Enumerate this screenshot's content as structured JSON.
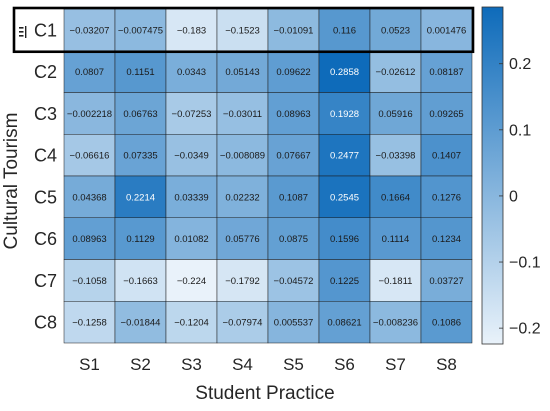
{
  "chart_data": {
    "type": "heatmap",
    "xlabel": "Student Practice",
    "ylabel": "Cultural Tourism",
    "x_categories": [
      "S1",
      "S2",
      "S3",
      "S4",
      "S5",
      "S6",
      "S7",
      "S8"
    ],
    "y_categories": [
      "C1",
      "C2",
      "C3",
      "C4",
      "C5",
      "C6",
      "C7",
      "C8"
    ],
    "cell_labels": [
      [
        "−0.03207",
        "−0.007475",
        "−0.183",
        "−0.1523",
        "−0.01091",
        "0.116",
        "0.0523",
        "0.001476"
      ],
      [
        "0.0807",
        "0.1151",
        "0.0343",
        "0.05143",
        "0.09622",
        "0.2858",
        "−0.02612",
        "0.08187"
      ],
      [
        "−0.002218",
        "0.06763",
        "−0.07253",
        "−0.03011",
        "0.08963",
        "0.1928",
        "0.05916",
        "0.09265"
      ],
      [
        "−0.06616",
        "0.07335",
        "−0.0349",
        "−0.008089",
        "0.07667",
        "0.2477",
        "−0.03398",
        "0.1407"
      ],
      [
        "0.04368",
        "0.2214",
        "0.03339",
        "0.02232",
        "0.1087",
        "0.2545",
        "0.1664",
        "0.1276"
      ],
      [
        "0.08963",
        "0.1129",
        "0.01082",
        "0.05776",
        "0.0875",
        "0.1596",
        "0.1114",
        "0.1234"
      ],
      [
        "−0.1058",
        "−0.1663",
        "−0.224",
        "−0.1792",
        "−0.04572",
        "0.1225",
        "−0.1811",
        "0.03727"
      ],
      [
        "−0.1258",
        "−0.01844",
        "−0.1204",
        "−0.07974",
        "0.005537",
        "0.08621",
        "−0.008236",
        "0.1086"
      ]
    ],
    "values": [
      [
        -0.03207,
        -0.007475,
        -0.183,
        -0.1523,
        -0.01091,
        0.116,
        0.0523,
        0.001476
      ],
      [
        0.0807,
        0.1151,
        0.0343,
        0.05143,
        0.09622,
        0.2858,
        -0.02612,
        0.08187
      ],
      [
        -0.002218,
        0.06763,
        -0.07253,
        -0.03011,
        0.08963,
        0.1928,
        0.05916,
        0.09265
      ],
      [
        -0.06616,
        0.07335,
        -0.0349,
        -0.008089,
        0.07667,
        0.2477,
        -0.03398,
        0.1407
      ],
      [
        0.04368,
        0.2214,
        0.03339,
        0.02232,
        0.1087,
        0.2545,
        0.1664,
        0.1276
      ],
      [
        0.08963,
        0.1129,
        0.01082,
        0.05776,
        0.0875,
        0.1596,
        0.1114,
        0.1234
      ],
      [
        -0.1058,
        -0.1663,
        -0.224,
        -0.1792,
        -0.04572,
        0.1225,
        -0.1811,
        0.03727
      ],
      [
        -0.1258,
        -0.01844,
        -0.1204,
        -0.07974,
        0.005537,
        0.08621,
        -0.008236,
        0.1086
      ]
    ],
    "color_range": [
      -0.224,
      0.2858
    ],
    "colorbar_ticks": [
      0.2,
      0.1,
      0,
      -0.1,
      -0.2
    ],
    "colorbar_tick_labels": [
      "0.2",
      "0.1",
      "0",
      "−0.1",
      "−0.2"
    ],
    "highlighted_row": "C1",
    "colors": {
      "low": "#e9f2fa",
      "high": "#0e6bba",
      "cell_border": "#1a1a1a",
      "highlight_border": "#000000",
      "text": "#1a1a1a"
    }
  }
}
